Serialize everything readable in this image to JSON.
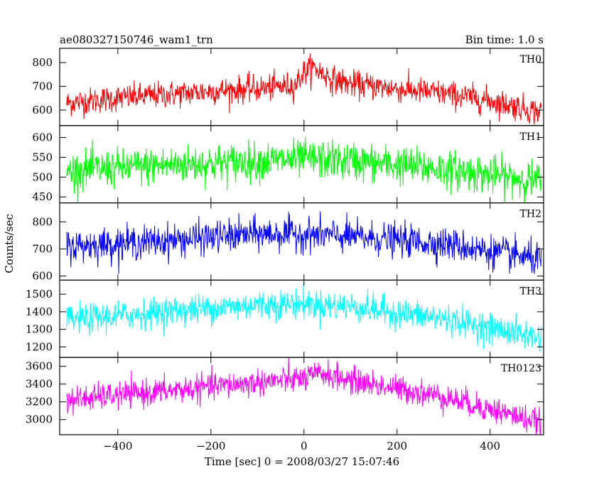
{
  "header": {
    "title": "ae080327150746_wam1_trn",
    "bin_time": "Bin time: 1.0 s"
  },
  "chart_data": {
    "type": "line",
    "xlabel": "Time [sec] 0 = 2008/03/27 15:07:46",
    "ylabel": "Counts/sec",
    "xlim": [
      -525,
      515
    ],
    "x_data_range": [
      -510,
      510
    ],
    "x_ticks": [
      -400,
      -200,
      0,
      200,
      400
    ],
    "grid": false,
    "panels": [
      {
        "name": "TH0",
        "color": "#ff0000",
        "ylim": [
          535,
          860
        ],
        "y_ticks": [
          600,
          700,
          800
        ],
        "trend": [
          [
            -510,
            630
          ],
          [
            -400,
            650
          ],
          [
            -200,
            680
          ],
          [
            -100,
            690
          ],
          [
            -20,
            705
          ],
          [
            0,
            760
          ],
          [
            20,
            780
          ],
          [
            60,
            730
          ],
          [
            100,
            710
          ],
          [
            200,
            690
          ],
          [
            300,
            670
          ],
          [
            400,
            640
          ],
          [
            510,
            590
          ]
        ],
        "noise_std": 28
      },
      {
        "name": "TH1",
        "color": "#00ff00",
        "ylim": [
          435,
          630
        ],
        "y_ticks": [
          450,
          500,
          550,
          600
        ],
        "trend": [
          [
            -510,
            515
          ],
          [
            -300,
            530
          ],
          [
            -100,
            540
          ],
          [
            0,
            545
          ],
          [
            100,
            540
          ],
          [
            300,
            520
          ],
          [
            510,
            490
          ]
        ],
        "noise_std": 24
      },
      {
        "name": "TH2",
        "color": "#0000ff",
        "ylim": [
          585,
          870
        ],
        "y_ticks": [
          600,
          700,
          800
        ],
        "trend": [
          [
            -510,
            710
          ],
          [
            -300,
            730
          ],
          [
            -100,
            755
          ],
          [
            0,
            755
          ],
          [
            100,
            745
          ],
          [
            300,
            720
          ],
          [
            510,
            660
          ]
        ],
        "noise_std": 30
      },
      {
        "name": "TH3",
        "color": "#00ffff",
        "ylim": [
          1140,
          1580
        ],
        "y_ticks": [
          1200,
          1300,
          1400,
          1500
        ],
        "trend": [
          [
            -510,
            1350
          ],
          [
            -300,
            1400
          ],
          [
            -100,
            1440
          ],
          [
            0,
            1445
          ],
          [
            100,
            1430
          ],
          [
            300,
            1360
          ],
          [
            510,
            1250
          ]
        ],
        "noise_std": 42
      },
      {
        "name": "TH0123",
        "color": "#ff00ff",
        "ylim": [
          2830,
          3700
        ],
        "y_ticks": [
          3000,
          3200,
          3400,
          3600
        ],
        "trend": [
          [
            -510,
            3220
          ],
          [
            -300,
            3320
          ],
          [
            -100,
            3420
          ],
          [
            0,
            3460
          ],
          [
            40,
            3520
          ],
          [
            100,
            3440
          ],
          [
            300,
            3260
          ],
          [
            510,
            2960
          ]
        ],
        "noise_std": 75
      }
    ]
  }
}
